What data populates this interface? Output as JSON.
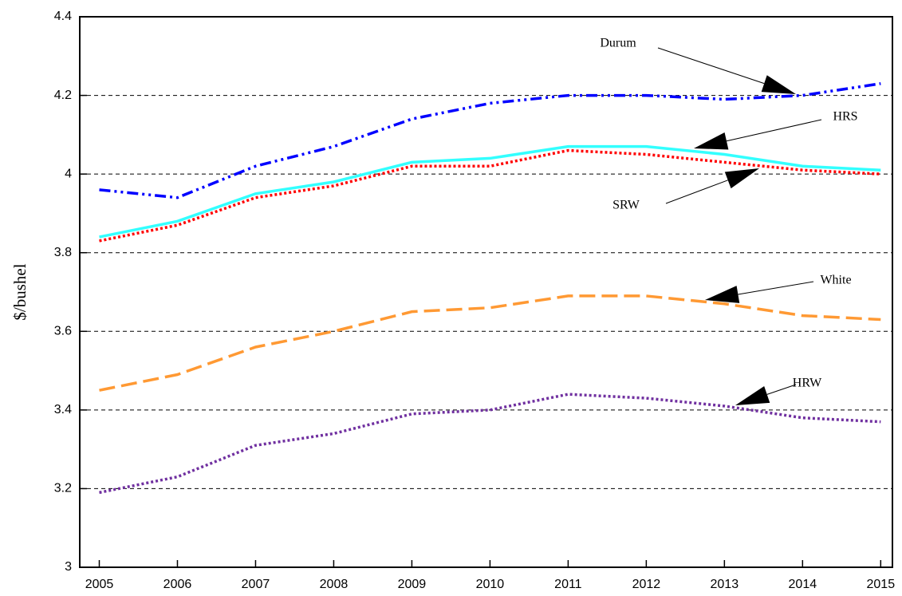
{
  "chart_data": {
    "type": "line",
    "y_label": "$/bushel",
    "x": [
      2005,
      2006,
      2007,
      2008,
      2009,
      2010,
      2011,
      2012,
      2013,
      2014,
      2015
    ],
    "xlim": [
      2004.75,
      2015.15
    ],
    "xticks": [
      2005,
      2006,
      2007,
      2008,
      2009,
      2010,
      2011,
      2012,
      2013,
      2014,
      2015
    ],
    "ylim": [
      3,
      4.4
    ],
    "yticks": [
      3,
      3.2,
      3.4,
      3.6,
      3.8,
      4,
      4.2,
      4.4
    ],
    "grid": true,
    "series": [
      {
        "name": "Durum",
        "color": "#0000ff",
        "line_style": "dashdotdot",
        "values": [
          3.96,
          3.94,
          4.02,
          4.07,
          4.14,
          4.18,
          4.2,
          4.2,
          4.19,
          4.2,
          4.23
        ]
      },
      {
        "name": "HRS",
        "color": "#33ffff",
        "line_style": "solid",
        "values": [
          3.84,
          3.88,
          3.95,
          3.98,
          4.03,
          4.04,
          4.07,
          4.07,
          4.05,
          4.02,
          4.01
        ]
      },
      {
        "name": "SRW",
        "color": "#ff0000",
        "line_style": "dotted",
        "values": [
          3.83,
          3.87,
          3.94,
          3.97,
          4.02,
          4.02,
          4.06,
          4.05,
          4.03,
          4.01,
          4.0
        ]
      },
      {
        "name": "White",
        "color": "#ff9933",
        "line_style": "dashed",
        "values": [
          3.45,
          3.49,
          3.56,
          3.6,
          3.65,
          3.66,
          3.69,
          3.69,
          3.67,
          3.64,
          3.63
        ]
      },
      {
        "name": "HRW",
        "color": "#7030a0",
        "line_style": "dotted",
        "values": [
          3.19,
          3.23,
          3.31,
          3.34,
          3.39,
          3.4,
          3.44,
          3.43,
          3.41,
          3.38,
          3.37
        ]
      }
    ]
  }
}
